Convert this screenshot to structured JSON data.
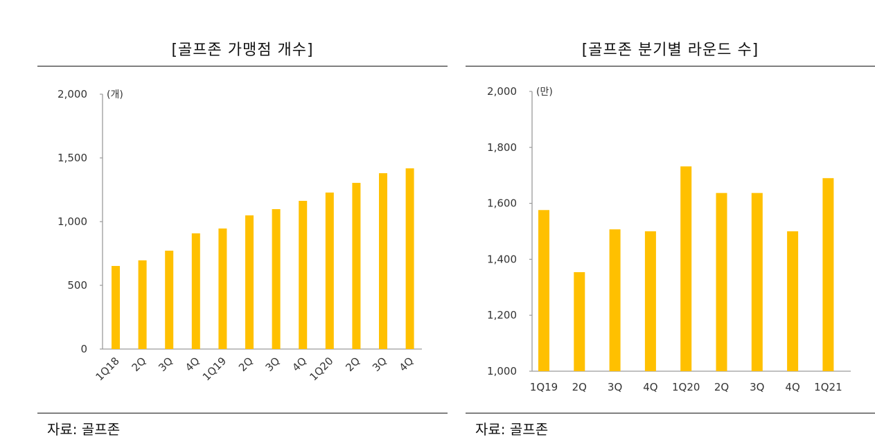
{
  "left": {
    "title": "[골프존 가맹점 개수]",
    "source": "자료: 골프존"
  },
  "right": {
    "title": "[골프존 분기별 라운드 수]",
    "source": "자료: 골프존"
  },
  "colors": {
    "bar": "#FFC000",
    "axis": "#9a9a9a",
    "rule": "#111111"
  },
  "chart_data": [
    {
      "type": "bar",
      "title": "[골프존 가맹점 개수]",
      "unit": "(개)",
      "xlabel": "",
      "ylabel": "(개)",
      "categories": [
        "1Q18",
        "2Q",
        "3Q",
        "4Q",
        "1Q19",
        "2Q",
        "3Q",
        "4Q",
        "1Q20",
        "2Q",
        "3Q",
        "4Q"
      ],
      "values": [
        652,
        696,
        772,
        908,
        946,
        1049,
        1098,
        1163,
        1228,
        1304,
        1380,
        1418
      ],
      "ylim": [
        0,
        2000
      ],
      "yticks": [
        0,
        500,
        1000,
        1500,
        2000
      ],
      "ytick_labels": [
        "0",
        "500",
        "1,000",
        "1,500",
        "2,000"
      ],
      "xtick_rotation": -45,
      "grid": false,
      "legend": "none",
      "source": "자료: 골프존"
    },
    {
      "type": "bar",
      "title": "[골프존 분기별 라운드 수]",
      "unit": "(만)",
      "xlabel": "",
      "ylabel": "(만)",
      "categories": [
        "1Q19",
        "2Q",
        "3Q",
        "4Q",
        "1Q20",
        "2Q",
        "3Q",
        "4Q",
        "1Q21"
      ],
      "values": [
        1576,
        1354,
        1507,
        1500,
        1732,
        1637,
        1637,
        1500,
        1690
      ],
      "ylim": [
        1000,
        2000
      ],
      "yticks": [
        1000,
        1200,
        1400,
        1600,
        1800,
        2000
      ],
      "ytick_labels": [
        "1,000",
        "1,200",
        "1,400",
        "1,600",
        "1,800",
        "2,000"
      ],
      "xtick_rotation": 0,
      "grid": false,
      "legend": "none",
      "source": "자료: 골프존"
    }
  ]
}
